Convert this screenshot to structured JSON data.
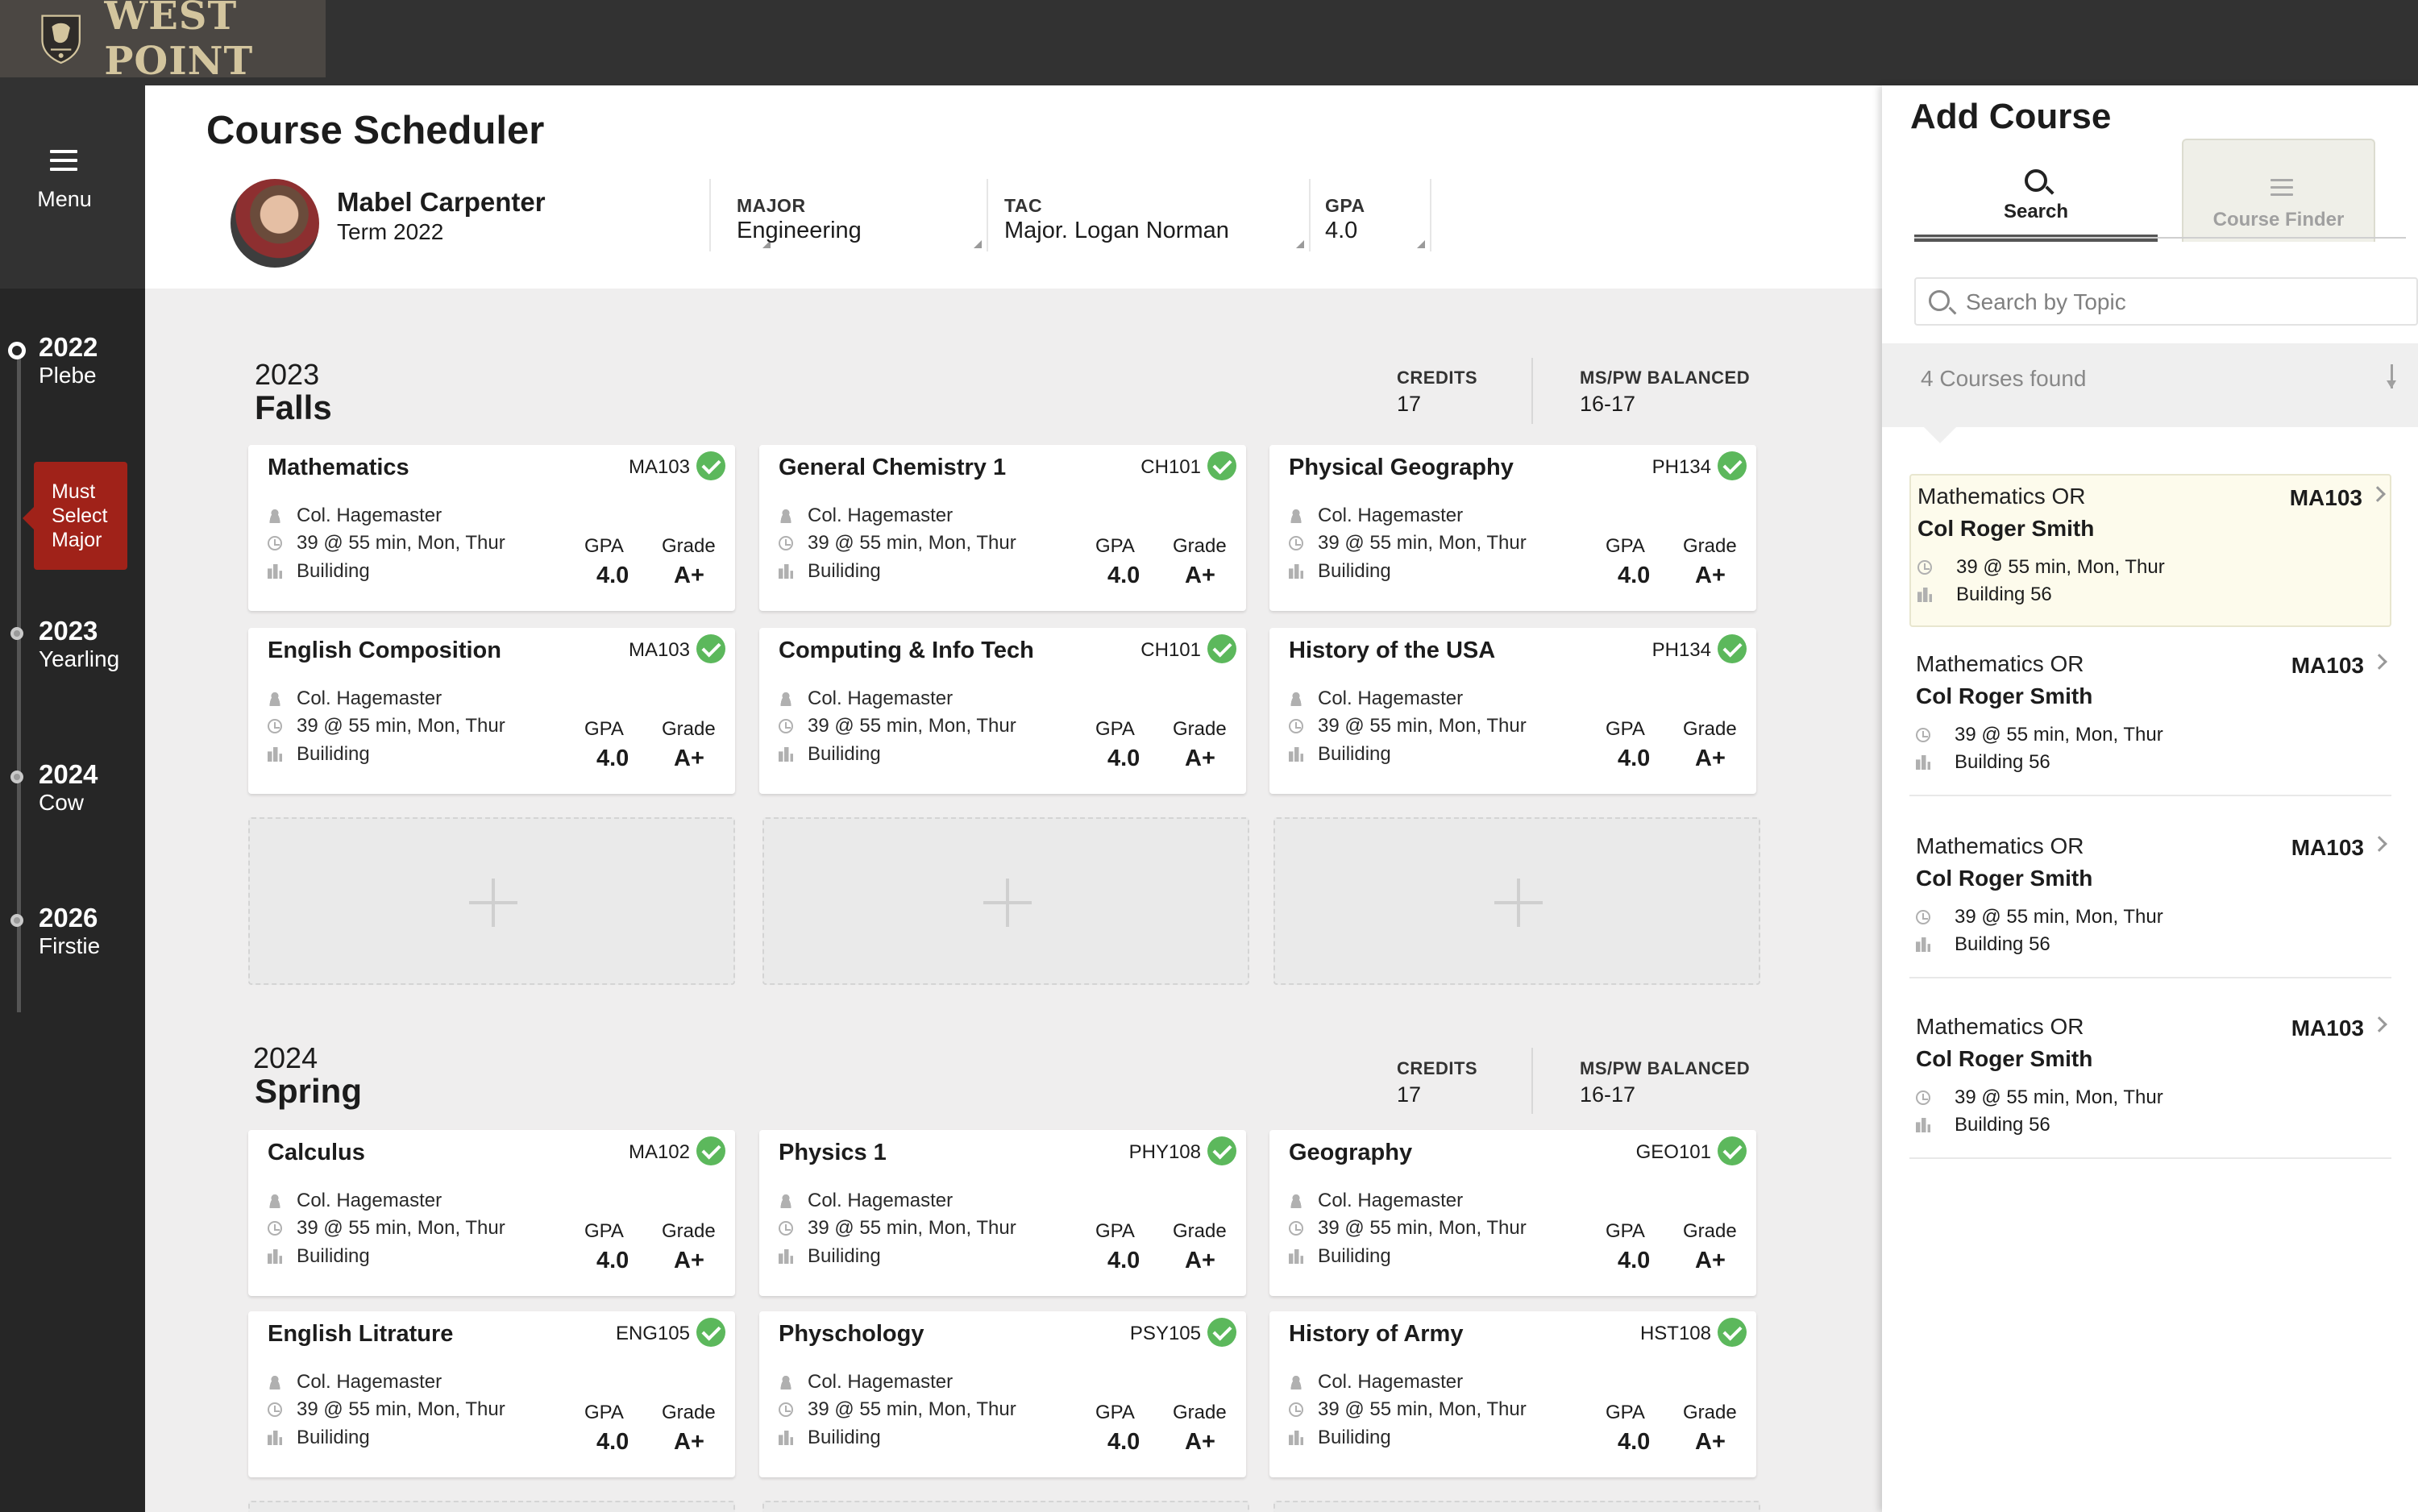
{
  "brand": {
    "name": "WEST POINT"
  },
  "nav": {
    "menu_label": "Menu"
  },
  "timeline": [
    {
      "year": "2022",
      "label": "Plebe"
    },
    {
      "year": "2023",
      "label": "Yearling"
    },
    {
      "year": "2024",
      "label": "Cow"
    },
    {
      "year": "2026",
      "label": "Firstie"
    }
  ],
  "alert": {
    "line1": "Must",
    "line2": "Select",
    "line3": "Major"
  },
  "header": {
    "title": "Course Scheduler",
    "student_name": "Mabel Carpenter",
    "term": "Term 2022",
    "major_label": "MAJOR",
    "major_value": "Engineering",
    "tac_label": "TAC",
    "tac_value": "Major. Logan Norman",
    "gpa_label": "GPA",
    "gpa_value": "4.0"
  },
  "semesters": [
    {
      "year": "2023",
      "name": "Falls",
      "credits_label": "CREDITS",
      "credits_value": "17",
      "balance_label": "MS/PW BALANCED",
      "balance_value": "16-17",
      "courses": [
        {
          "title": "Mathematics",
          "code": "MA103",
          "instructor": "Col. Hagemaster",
          "schedule": "39 @ 55 min, Mon, Thur",
          "building": "Builiding",
          "gpa_label": "GPA",
          "gpa": "4.0",
          "grade_label": "Grade",
          "grade": "A+"
        },
        {
          "title": "General Chemistry 1",
          "code": "CH101",
          "instructor": "Col. Hagemaster",
          "schedule": "39 @ 55 min, Mon, Thur",
          "building": "Builiding",
          "gpa_label": "GPA",
          "gpa": "4.0",
          "grade_label": "Grade",
          "grade": "A+"
        },
        {
          "title": "Physical Geography",
          "code": "PH134",
          "instructor": "Col. Hagemaster",
          "schedule": "39 @ 55 min, Mon, Thur",
          "building": "Builiding",
          "gpa_label": "GPA",
          "gpa": "4.0",
          "grade_label": "Grade",
          "grade": "A+"
        },
        {
          "title": "English Composition",
          "code": "MA103",
          "instructor": "Col. Hagemaster",
          "schedule": "39 @ 55 min, Mon, Thur",
          "building": "Builiding",
          "gpa_label": "GPA",
          "gpa": "4.0",
          "grade_label": "Grade",
          "grade": "A+"
        },
        {
          "title": "Computing & Info Tech",
          "code": "CH101",
          "instructor": "Col. Hagemaster",
          "schedule": "39 @ 55 min, Mon, Thur",
          "building": "Builiding",
          "gpa_label": "GPA",
          "gpa": "4.0",
          "grade_label": "Grade",
          "grade": "A+"
        },
        {
          "title": "History of the USA",
          "code": "PH134",
          "instructor": "Col. Hagemaster",
          "schedule": "39 @ 55 min, Mon, Thur",
          "building": "Builiding",
          "gpa_label": "GPA",
          "gpa": "4.0",
          "grade_label": "Grade",
          "grade": "A+"
        }
      ]
    },
    {
      "year": "2024",
      "name": "Spring",
      "credits_label": "CREDITS",
      "credits_value": "17",
      "balance_label": "MS/PW BALANCED",
      "balance_value": "16-17",
      "courses": [
        {
          "title": "Calculus",
          "code": "MA102",
          "instructor": "Col. Hagemaster",
          "schedule": "39 @ 55 min, Mon, Thur",
          "building": "Builiding",
          "gpa_label": "GPA",
          "gpa": "4.0",
          "grade_label": "Grade",
          "grade": "A+"
        },
        {
          "title": "Physics 1",
          "code": "PHY108",
          "instructor": "Col. Hagemaster",
          "schedule": "39 @ 55 min, Mon, Thur",
          "building": "Builiding",
          "gpa_label": "GPA",
          "gpa": "4.0",
          "grade_label": "Grade",
          "grade": "A+"
        },
        {
          "title": "Geography",
          "code": "GEO101",
          "instructor": "Col. Hagemaster",
          "schedule": "39 @ 55 min, Mon, Thur",
          "building": "Builiding",
          "gpa_label": "GPA",
          "gpa": "4.0",
          "grade_label": "Grade",
          "grade": "A+"
        },
        {
          "title": "English Litrature",
          "code": "ENG105",
          "instructor": "Col. Hagemaster",
          "schedule": "39 @ 55 min, Mon, Thur",
          "building": "Builiding",
          "gpa_label": "GPA",
          "gpa": "4.0",
          "grade_label": "Grade",
          "grade": "A+"
        },
        {
          "title": "Physchology",
          "code": "PSY105",
          "instructor": "Col. Hagemaster",
          "schedule": "39 @ 55 min, Mon, Thur",
          "building": "Builiding",
          "gpa_label": "GPA",
          "gpa": "4.0",
          "grade_label": "Grade",
          "grade": "A+"
        },
        {
          "title": "History of Army",
          "code": "HST108",
          "instructor": "Col. Hagemaster",
          "schedule": "39 @ 55 min, Mon, Thur",
          "building": "Builiding",
          "gpa_label": "GPA",
          "gpa": "4.0",
          "grade_label": "Grade",
          "grade": "A+"
        }
      ]
    }
  ],
  "panel": {
    "title": "Add Course",
    "tab_search": "Search",
    "tab_finder": "Course Finder",
    "search_placeholder": "Search by Topic",
    "results_count": "4 Courses found",
    "results": [
      {
        "title": "Mathematics OR",
        "instructor": "Col Roger Smith",
        "code": "MA103",
        "schedule": "39 @ 55 min, Mon, Thur",
        "building": "Building 56"
      },
      {
        "title": "Mathematics OR",
        "instructor": "Col Roger Smith",
        "code": "MA103",
        "schedule": "39 @ 55 min, Mon, Thur",
        "building": "Building 56"
      },
      {
        "title": "Mathematics OR",
        "instructor": "Col Roger Smith",
        "code": "MA103",
        "schedule": "39 @ 55 min, Mon, Thur",
        "building": "Building 56"
      },
      {
        "title": "Mathematics OR",
        "instructor": "Col Roger Smith",
        "code": "MA103",
        "schedule": "39 @ 55 min, Mon, Thur",
        "building": "Building 56"
      }
    ]
  },
  "colors": {
    "alert": "#a02219",
    "check": "#5cb85c",
    "brand_gold": "#d3c59e",
    "selected_result": "#fdfbec"
  }
}
